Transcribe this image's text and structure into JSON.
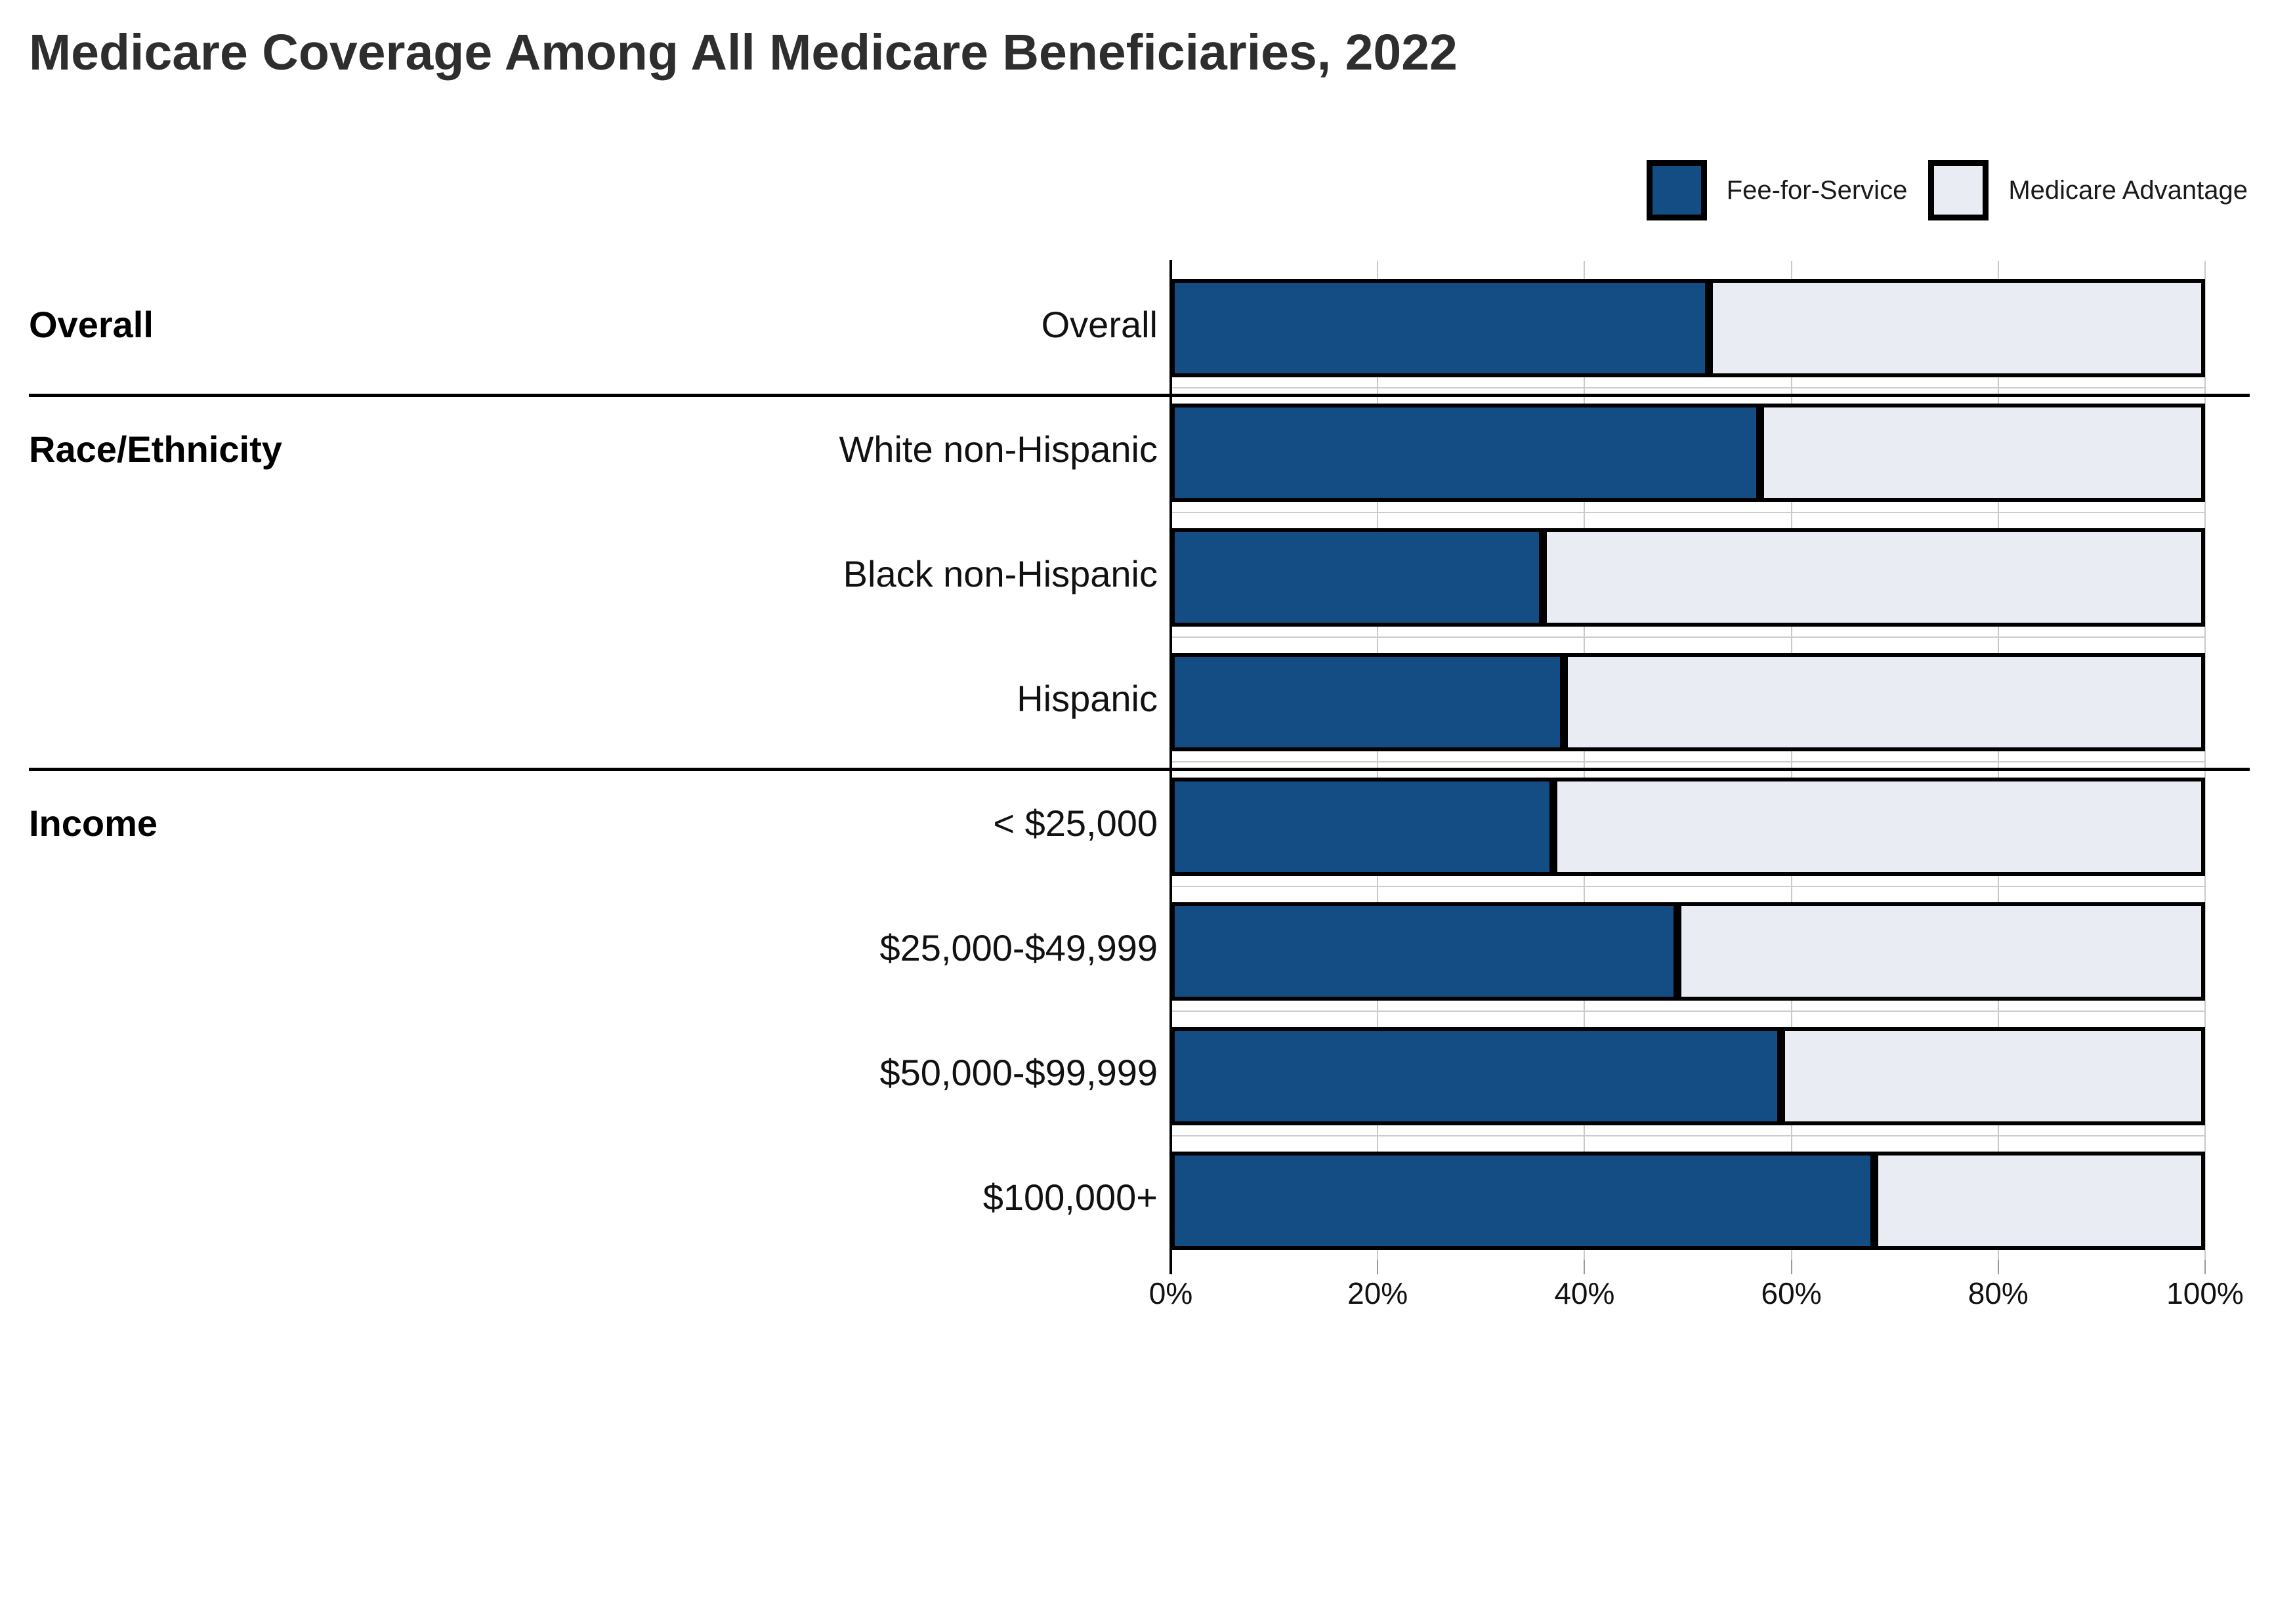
{
  "title": "Medicare Coverage Among All Medicare Beneficiaries, 2022",
  "legend": [
    {
      "label": "Fee-for-Service",
      "color": "#134d84"
    },
    {
      "label": "Medicare Advantage",
      "color": "#e9ecf3"
    }
  ],
  "colors": {
    "fee_for_service": "#134d84",
    "medicare_advantage": "#e9ecf3",
    "bar_border": "#000000",
    "gridline": "#c9c9c9",
    "title_text": "#2e2e2e"
  },
  "chart_data": {
    "type": "bar",
    "stacked": true,
    "orientation": "horizontal",
    "unit": "percent",
    "title": "Medicare Coverage Among All Medicare Beneficiaries, 2022",
    "xlabel": "",
    "ylabel": "",
    "x_axis": {
      "range": [
        0,
        100
      ],
      "tick_values": [
        0,
        20,
        40,
        60,
        80,
        100
      ],
      "ticks": [
        "0%",
        "20%",
        "40%",
        "60%",
        "80%",
        "100%"
      ],
      "grid": true
    },
    "legend_position": "top-right",
    "groups": [
      {
        "label": "Overall",
        "rows": [
          "Overall"
        ]
      },
      {
        "label": "Race/Ethnicity",
        "rows": [
          "White non-Hispanic",
          "Black non-Hispanic",
          "Hispanic"
        ]
      },
      {
        "label": "Income",
        "rows": [
          "< $25,000",
          "$25,000-$49,999",
          "$50,000-$99,999",
          "$100,000+"
        ]
      }
    ],
    "categories": [
      "Overall",
      "White non-Hispanic",
      "Black non-Hispanic",
      "Hispanic",
      "< $25,000",
      "$25,000-$49,999",
      "$50,000-$99,999",
      "$100,000+"
    ],
    "series": [
      {
        "name": "Fee-for-Service",
        "values": [
          52,
          57,
          36,
          38,
          37,
          49,
          59,
          68
        ]
      },
      {
        "name": "Medicare Advantage",
        "values": [
          48,
          43,
          64,
          62,
          63,
          51,
          41,
          32
        ]
      }
    ]
  }
}
